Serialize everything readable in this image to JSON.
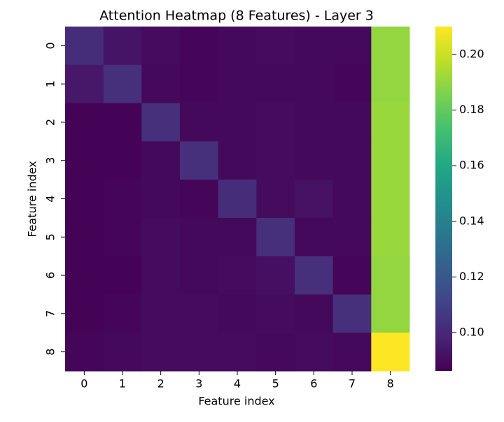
{
  "chart_data": {
    "type": "heatmap",
    "title": "Attention Heatmap (8 Features) - Layer 3",
    "xlabel": "Feature index",
    "ylabel": "Feature index",
    "categories": [
      "0",
      "1",
      "2",
      "3",
      "4",
      "5",
      "6",
      "7",
      "8"
    ],
    "y_categories": [
      "0",
      "1",
      "2",
      "3",
      "4",
      "5",
      "6",
      "7",
      "8"
    ],
    "values": [
      [
        0.102,
        0.093,
        0.09,
        0.088,
        0.089,
        0.09,
        0.089,
        0.089,
        0.19
      ],
      [
        0.094,
        0.103,
        0.089,
        0.088,
        0.089,
        0.089,
        0.089,
        0.088,
        0.19
      ],
      [
        0.087,
        0.087,
        0.103,
        0.089,
        0.089,
        0.09,
        0.089,
        0.089,
        0.191
      ],
      [
        0.087,
        0.087,
        0.089,
        0.103,
        0.089,
        0.09,
        0.089,
        0.089,
        0.191
      ],
      [
        0.087,
        0.088,
        0.089,
        0.088,
        0.102,
        0.09,
        0.092,
        0.089,
        0.191
      ],
      [
        0.087,
        0.088,
        0.09,
        0.089,
        0.089,
        0.103,
        0.089,
        0.089,
        0.191
      ],
      [
        0.087,
        0.087,
        0.09,
        0.089,
        0.09,
        0.091,
        0.103,
        0.088,
        0.19
      ],
      [
        0.087,
        0.088,
        0.09,
        0.09,
        0.089,
        0.09,
        0.089,
        0.103,
        0.19
      ],
      [
        0.088,
        0.089,
        0.09,
        0.09,
        0.09,
        0.089,
        0.09,
        0.089,
        0.21
      ]
    ],
    "colormap": "viridis",
    "zlim": [
      0.0862,
      0.21
    ],
    "zticks": [
      {
        "value": 0.1,
        "label": "0.10"
      },
      0.12,
      0.14,
      0.16,
      0.18,
      {
        "value": 0.2,
        "label": "0.20"
      }
    ]
  }
}
